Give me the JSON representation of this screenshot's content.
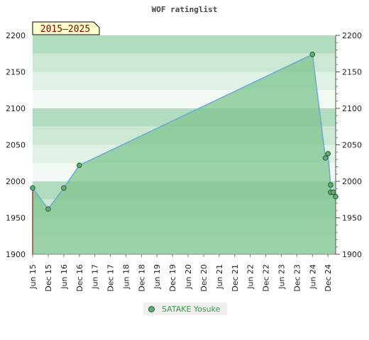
{
  "chart_data": {
    "type": "area",
    "title": "WOF ratinglist",
    "period_badge": "2015–2025",
    "y_ticks": [
      1900,
      1950,
      2000,
      2050,
      2100,
      2150,
      2200
    ],
    "ylim": [
      1900,
      2200
    ],
    "x_ticks": [
      "Jun 15",
      "Dec 15",
      "Jun 16",
      "Dec 16",
      "Jun 17",
      "Dec 17",
      "Jun 18",
      "Dec 18",
      "Jun 19",
      "Dec 19",
      "Jun 20",
      "Dec 20",
      "Jun 21",
      "Dec 21",
      "Jun 22",
      "Dec 22",
      "Jun 23",
      "Dec 23",
      "Jun 24",
      "Dec 24"
    ],
    "series": [
      {
        "name": "SATAKE Yosuke",
        "points": [
          {
            "x": "2015-06",
            "y": 1991
          },
          {
            "x": "2015-12",
            "y": 1962
          },
          {
            "x": "2016-06",
            "y": 1991
          },
          {
            "x": "2016-12",
            "y": 2022
          },
          {
            "x": "2024-06",
            "y": 2174
          },
          {
            "x": "2024-11",
            "y": 2032
          },
          {
            "x": "2024-12",
            "y": 2038
          },
          {
            "x": "2025-01",
            "y": 1995
          },
          {
            "x": "2025-01",
            "y": 1985
          },
          {
            "x": "2025-02",
            "y": 1985
          },
          {
            "x": "2025-03",
            "y": 1979
          }
        ]
      }
    ],
    "colors": {
      "line": "#6aa8d8",
      "fill": "#7fc48f",
      "point": "#5fae73",
      "point_stroke": "#2d5a36",
      "badge_bg": "#ffffcc",
      "badge_text": "#8b0000"
    },
    "grid": true,
    "legend": "bottom-center"
  }
}
